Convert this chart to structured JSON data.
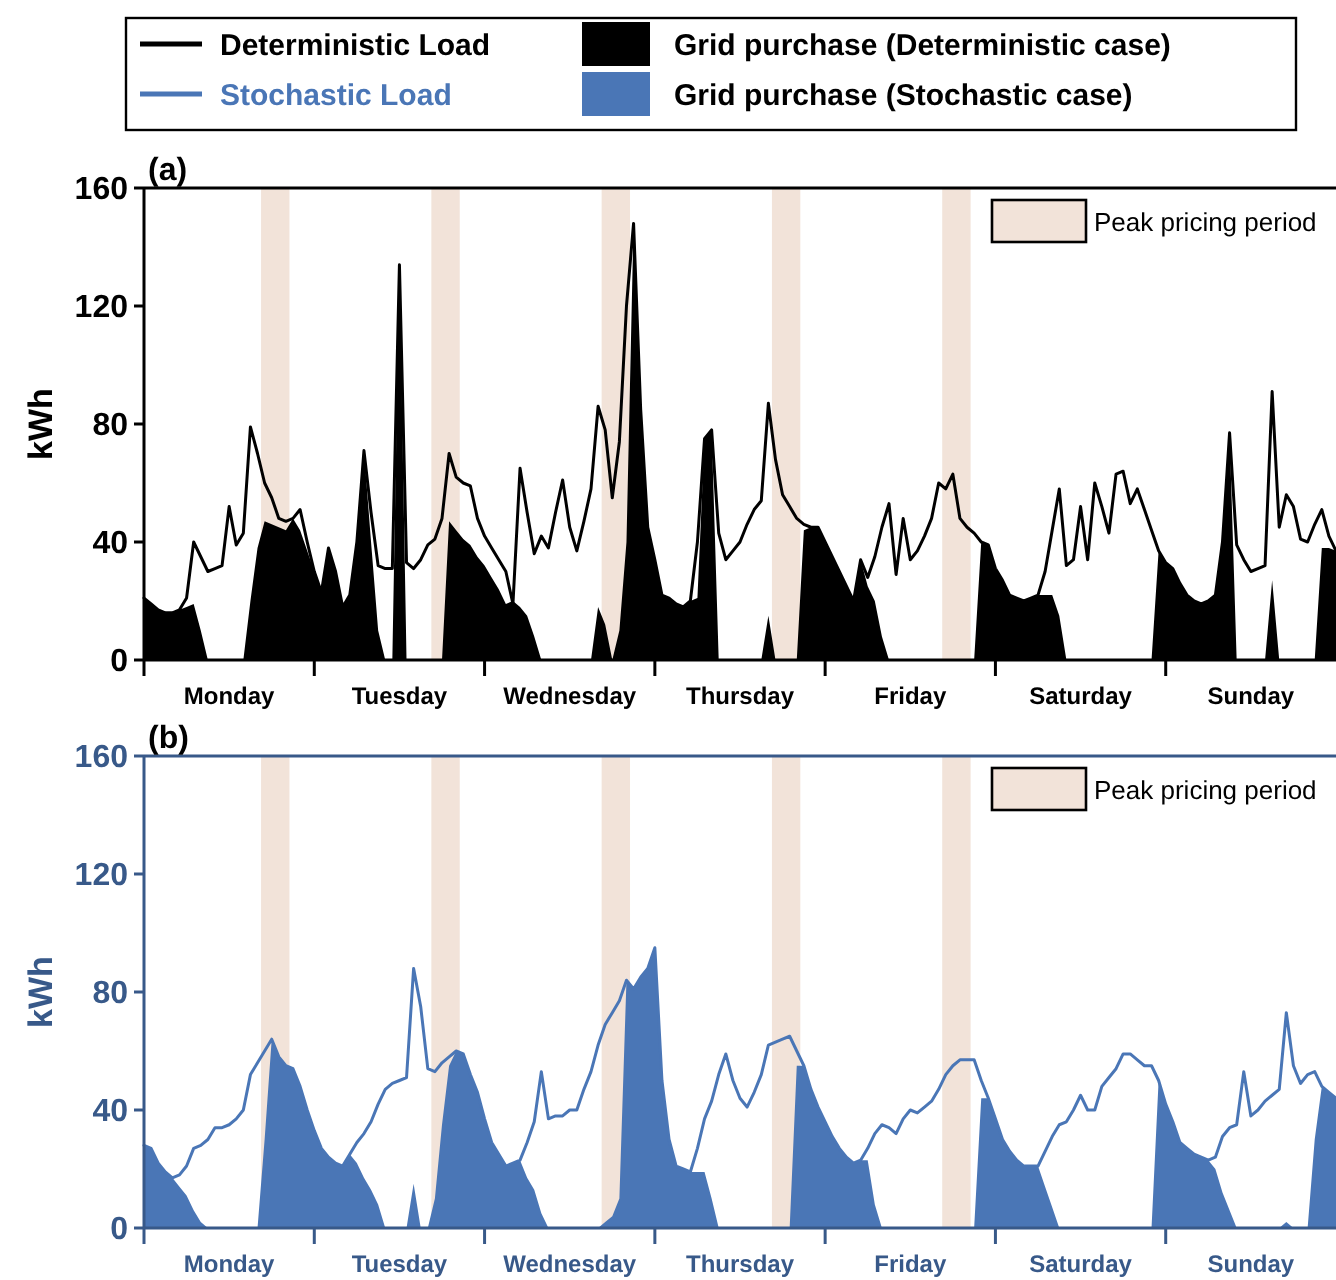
{
  "chart_data": [
    {
      "type": "line",
      "title": "(a)",
      "ylabel": "kWh",
      "annotations": [
        "Peak pricing period"
      ],
      "ylim": [
        0,
        160
      ],
      "yticks": [
        0,
        40,
        80,
        120,
        160
      ],
      "legend": "top",
      "categories": [
        null,
        null,
        null,
        null,
        null,
        null,
        null,
        null,
        null,
        null,
        null,
        null,
        "Monday",
        null,
        null,
        null,
        null,
        null,
        null,
        null,
        null,
        null,
        null,
        null,
        null,
        null,
        null,
        null,
        null,
        null,
        null,
        null,
        null,
        null,
        null,
        null,
        "Tuesday",
        null,
        null,
        null,
        null,
        null,
        null,
        null,
        null,
        null,
        null,
        null,
        null,
        null,
        null,
        null,
        null,
        null,
        null,
        null,
        null,
        null,
        null,
        null,
        "Wednesday",
        null,
        null,
        null,
        null,
        null,
        null,
        null,
        null,
        null,
        null,
        null,
        null,
        null,
        null,
        null,
        null,
        null,
        null,
        null,
        null,
        null,
        null,
        null,
        "Thursday",
        null,
        null,
        null,
        null,
        null,
        null,
        null,
        null,
        null,
        null,
        null,
        null,
        null,
        null,
        null,
        null,
        null,
        null,
        null,
        null,
        null,
        null,
        null,
        "Friday",
        null,
        null,
        null,
        null,
        null,
        null,
        null,
        null,
        null,
        null,
        null,
        null,
        null,
        null,
        null,
        null,
        null,
        null,
        null,
        null,
        null,
        null,
        null,
        "Saturday",
        null,
        null,
        null,
        null,
        null,
        null,
        null,
        null,
        null,
        null,
        null,
        null,
        null,
        null,
        null,
        null,
        null,
        null,
        null,
        null,
        null,
        null,
        null,
        "Sunday",
        null,
        null,
        null,
        null,
        null,
        null,
        null,
        null,
        null,
        null,
        null,
        null
      ],
      "series": [
        {
          "name": "Deterministic Load",
          "color": "#000000",
          "values": [
            21,
            19,
            17,
            16,
            16,
            17,
            21,
            40,
            35,
            30,
            31,
            32,
            52,
            39,
            43,
            79,
            70,
            60,
            55,
            48,
            47,
            48,
            51,
            40,
            30,
            23,
            38,
            30,
            18,
            22,
            40,
            71,
            50,
            32,
            31,
            31,
            134,
            33,
            31,
            34,
            39,
            41,
            48,
            70,
            62,
            60,
            59,
            48,
            42,
            38,
            34,
            30,
            19,
            65,
            50,
            36,
            42,
            38,
            50,
            61,
            45,
            37,
            47,
            58,
            86,
            78,
            55,
            74,
            120,
            148,
            85,
            45,
            34,
            22,
            21,
            19,
            18,
            20,
            40,
            75,
            78,
            43,
            34,
            37,
            40,
            46,
            51,
            54,
            87,
            68,
            56,
            52,
            48,
            46,
            45,
            45,
            40,
            35,
            30,
            25,
            20,
            34,
            28,
            35,
            45,
            53,
            29,
            48,
            34,
            37,
            42,
            48,
            60,
            58,
            63,
            48,
            45,
            43,
            40,
            39,
            31,
            27,
            22,
            21,
            20,
            21,
            22,
            30,
            44,
            58,
            32,
            34,
            52,
            34,
            60,
            52,
            43,
            63,
            64,
            53,
            58,
            51,
            44,
            37,
            33,
            31,
            26,
            22,
            20,
            19,
            20,
            22,
            40,
            77,
            39,
            34,
            30,
            31,
            32,
            91,
            45,
            56,
            52,
            41,
            40,
            46,
            51,
            42,
            37
          ]
        },
        {
          "name": "Grid purchase (Deterministic case)",
          "type": "area",
          "color": "#000000",
          "values": [
            21,
            19,
            17,
            16,
            16,
            17,
            18,
            19,
            10,
            0,
            0,
            0,
            0,
            0,
            0,
            20,
            38,
            47,
            46,
            45,
            44,
            48,
            44,
            37,
            30,
            23,
            38,
            30,
            18,
            22,
            40,
            71,
            40,
            10,
            0,
            0,
            134,
            0,
            0,
            0,
            0,
            0,
            0,
            47,
            44,
            41,
            39,
            35,
            32,
            28,
            24,
            19,
            20,
            18,
            15,
            8,
            0,
            0,
            0,
            0,
            0,
            0,
            0,
            0,
            18,
            12,
            0,
            10,
            40,
            148,
            85,
            45,
            34,
            22,
            21,
            19,
            18,
            20,
            21,
            75,
            78,
            0,
            0,
            0,
            0,
            0,
            0,
            0,
            15,
            0,
            0,
            0,
            0,
            44,
            45,
            45,
            40,
            35,
            30,
            25,
            20,
            34,
            25,
            20,
            8,
            0,
            0,
            0,
            0,
            0,
            0,
            0,
            0,
            0,
            0,
            0,
            0,
            0,
            40,
            39,
            31,
            27,
            22,
            21,
            20,
            21,
            22,
            22,
            22,
            15,
            0,
            0,
            0,
            0,
            0,
            0,
            0,
            0,
            0,
            0,
            0,
            0,
            0,
            37,
            33,
            31,
            26,
            22,
            20,
            19,
            20,
            22,
            40,
            77,
            0,
            0,
            0,
            0,
            0,
            27,
            0,
            0,
            0,
            0,
            0,
            0,
            38,
            38,
            37
          ]
        }
      ]
    },
    {
      "type": "line",
      "title": "(b)",
      "ylabel": "kWh",
      "annotations": [
        "Peak pricing period"
      ],
      "ylim": [
        0,
        160
      ],
      "yticks": [
        0,
        40,
        80,
        120,
        160
      ],
      "legend": "top",
      "categories": [
        null,
        null,
        null,
        null,
        null,
        null,
        null,
        null,
        null,
        null,
        null,
        null,
        "Monday",
        null,
        null,
        null,
        null,
        null,
        null,
        null,
        null,
        null,
        null,
        null,
        null,
        null,
        null,
        null,
        null,
        null,
        null,
        null,
        null,
        null,
        null,
        null,
        "Tuesday",
        null,
        null,
        null,
        null,
        null,
        null,
        null,
        null,
        null,
        null,
        null,
        null,
        null,
        null,
        null,
        null,
        null,
        null,
        null,
        null,
        null,
        null,
        null,
        "Wednesday",
        null,
        null,
        null,
        null,
        null,
        null,
        null,
        null,
        null,
        null,
        null,
        null,
        null,
        null,
        null,
        null,
        null,
        null,
        null,
        null,
        null,
        null,
        null,
        "Thursday",
        null,
        null,
        null,
        null,
        null,
        null,
        null,
        null,
        null,
        null,
        null,
        null,
        null,
        null,
        null,
        null,
        null,
        null,
        null,
        null,
        null,
        null,
        null,
        "Friday",
        null,
        null,
        null,
        null,
        null,
        null,
        null,
        null,
        null,
        null,
        null,
        null,
        null,
        null,
        null,
        null,
        null,
        null,
        null,
        null,
        null,
        null,
        null,
        "Saturday",
        null,
        null,
        null,
        null,
        null,
        null,
        null,
        null,
        null,
        null,
        null,
        null,
        null,
        null,
        null,
        null,
        null,
        null,
        null,
        null,
        null,
        null,
        null,
        "Sunday",
        null,
        null,
        null,
        null,
        null,
        null,
        null,
        null,
        null,
        null,
        null,
        null
      ],
      "series": [
        {
          "name": "Stochastic Load",
          "color": "#4a76b6",
          "values": [
            28,
            27,
            22,
            19,
            17,
            18,
            21,
            27,
            28,
            30,
            34,
            34,
            35,
            37,
            40,
            52,
            56,
            60,
            64,
            58,
            55,
            54,
            48,
            40,
            33,
            27,
            24,
            22,
            21,
            25,
            29,
            32,
            36,
            42,
            47,
            49,
            50,
            51,
            88,
            75,
            54,
            53,
            56,
            58,
            60,
            59,
            52,
            46,
            37,
            29,
            25,
            21,
            22,
            23,
            29,
            36,
            53,
            37,
            38,
            38,
            40,
            40,
            47,
            53,
            62,
            69,
            73,
            77,
            84,
            81,
            85,
            88,
            95,
            50,
            30,
            21,
            20,
            19,
            27,
            37,
            43,
            52,
            59,
            50,
            44,
            41,
            46,
            52,
            62,
            63,
            64,
            65,
            60,
            55,
            47,
            41,
            36,
            31,
            27,
            24,
            22,
            23,
            27,
            32,
            35,
            34,
            32,
            37,
            40,
            39,
            41,
            43,
            47,
            52,
            55,
            57,
            57,
            57,
            50,
            44,
            37,
            30,
            26,
            23,
            21,
            21,
            21,
            26,
            31,
            35,
            36,
            40,
            45,
            40,
            40,
            48,
            51,
            54,
            59,
            59,
            57,
            55,
            55,
            50,
            42,
            36,
            29,
            27,
            25,
            24,
            23,
            24,
            31,
            34,
            35,
            53,
            38,
            40,
            43,
            45,
            47,
            73,
            55,
            49,
            52,
            53,
            48,
            46,
            44
          ]
        },
        {
          "name": "Grid purchase (Stochastic case)",
          "type": "area",
          "color": "#4a76b6",
          "values": [
            28,
            27,
            22,
            19,
            17,
            14,
            11,
            6,
            2,
            0,
            0,
            0,
            0,
            0,
            0,
            0,
            0,
            30,
            64,
            58,
            55,
            54,
            48,
            40,
            33,
            27,
            24,
            22,
            21,
            25,
            22,
            17,
            13,
            8,
            0,
            0,
            0,
            0,
            15,
            0,
            0,
            10,
            35,
            55,
            60,
            59,
            52,
            46,
            37,
            29,
            25,
            21,
            22,
            23,
            17,
            13,
            5,
            0,
            0,
            0,
            0,
            0,
            0,
            0,
            0,
            2,
            4,
            10,
            84,
            81,
            85,
            88,
            95,
            50,
            30,
            21,
            20,
            19,
            19,
            19,
            10,
            0,
            0,
            0,
            0,
            0,
            0,
            0,
            0,
            0,
            0,
            0,
            55,
            55,
            47,
            41,
            36,
            31,
            27,
            24,
            22,
            23,
            23,
            8,
            0,
            0,
            0,
            0,
            0,
            0,
            0,
            0,
            0,
            0,
            0,
            0,
            0,
            0,
            44,
            44,
            37,
            30,
            26,
            23,
            21,
            21,
            21,
            14,
            7,
            0,
            0,
            0,
            0,
            0,
            0,
            0,
            0,
            0,
            0,
            0,
            0,
            0,
            0,
            50,
            42,
            36,
            29,
            27,
            25,
            24,
            23,
            20,
            12,
            6,
            0,
            0,
            0,
            0,
            0,
            0,
            0,
            2,
            0,
            0,
            0,
            30,
            48,
            46,
            44
          ]
        }
      ]
    }
  ]
}
